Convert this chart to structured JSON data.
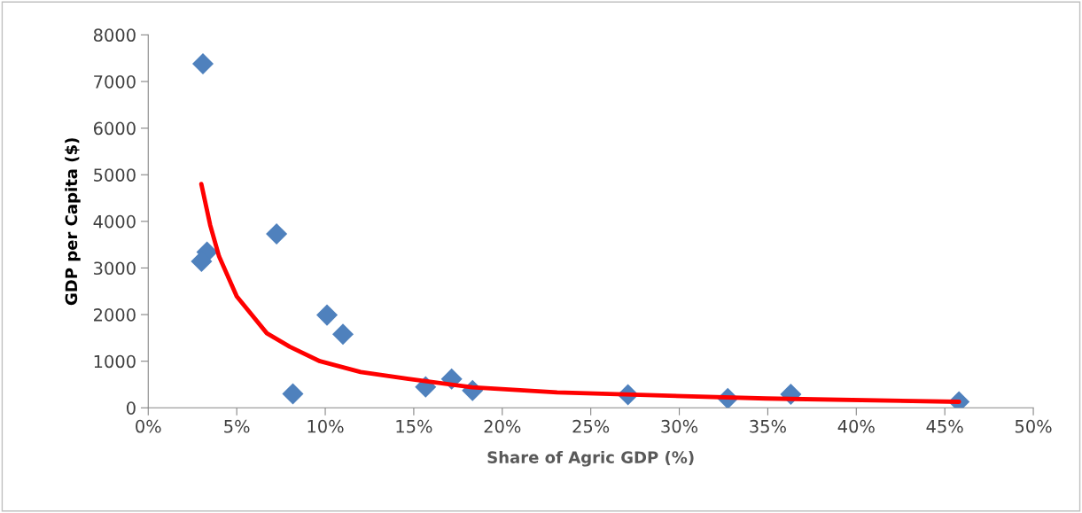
{
  "chart_data": {
    "type": "scatter",
    "xlabel": "Share of Agric GDP (%)",
    "ylabel": "GDP per Capita ($)",
    "xlim": [
      0,
      50
    ],
    "ylim": [
      0,
      8000
    ],
    "xticks": [
      {
        "value": 0,
        "label": "0%"
      },
      {
        "value": 5,
        "label": "5%"
      },
      {
        "value": 10,
        "label": "10%"
      },
      {
        "value": 15,
        "label": "15%"
      },
      {
        "value": 20,
        "label": "20%"
      },
      {
        "value": 25,
        "label": "25%"
      },
      {
        "value": 30,
        "label": "30%"
      },
      {
        "value": 35,
        "label": "35%"
      },
      {
        "value": 40,
        "label": "40%"
      },
      {
        "value": 45,
        "label": "45%"
      },
      {
        "value": 50,
        "label": "50%"
      }
    ],
    "yticks": [
      0,
      1000,
      2000,
      3000,
      4000,
      5000,
      6000,
      7000,
      8000
    ],
    "grid": false,
    "legend": false,
    "marker": "diamond",
    "series": [
      {
        "color": "#4f81bd",
        "x": [
          3.09,
          7.25,
          3.32,
          3.01,
          10.1,
          11.0,
          8.17,
          15.67,
          17.14,
          18.32,
          27.1,
          32.74,
          36.3,
          45.8
        ],
        "values": [
          7380,
          3730,
          3340,
          3140,
          1990,
          1580,
          300,
          450,
          620,
          370,
          280,
          200,
          290,
          130
        ]
      },
      {
        "type": "line",
        "color": "#ff0000",
        "marker": "none",
        "line_style": "solid",
        "x": [
          3.0,
          3.5,
          4.0,
          5.0,
          6.7,
          8.0,
          9.7,
          12.0,
          14.7,
          18.3,
          23.1,
          34.9,
          45.8
        ],
        "values": [
          4800,
          3920,
          3250,
          2390,
          1600,
          1310,
          1000,
          770,
          620,
          440,
          330,
          200,
          130
        ]
      }
    ]
  }
}
